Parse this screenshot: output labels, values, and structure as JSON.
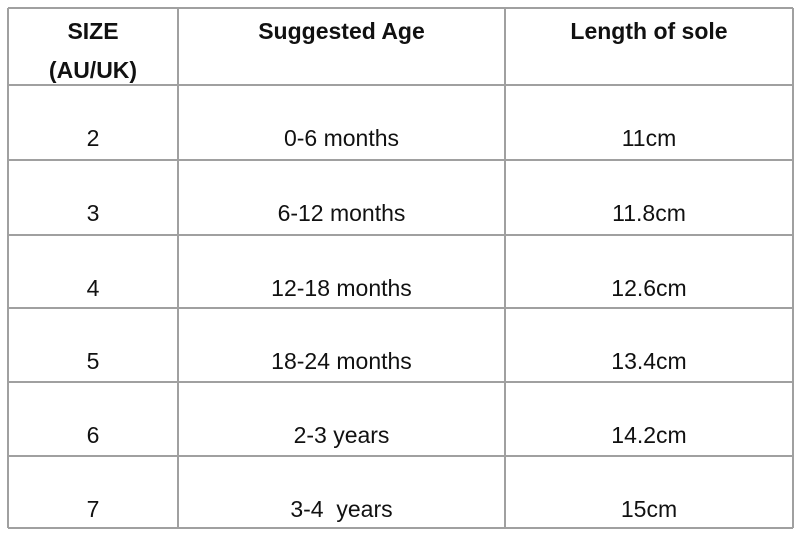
{
  "table": {
    "header": [
      {
        "lines": [
          "SIZE",
          "(AU/UK)"
        ]
      },
      {
        "lines": [
          "Suggested Age"
        ]
      },
      {
        "lines": [
          "Length of sole"
        ]
      }
    ],
    "rows": [
      [
        "2",
        "0-6 months",
        "11cm"
      ],
      [
        "3",
        "6-12 months",
        "11.8cm"
      ],
      [
        "4",
        "12-18 months",
        "12.6cm"
      ],
      [
        "5",
        "18-24 months",
        "13.4cm"
      ],
      [
        "6",
        "2-3 years",
        "14.2cm"
      ],
      [
        "7",
        "3-4  years",
        "15cm"
      ]
    ]
  }
}
